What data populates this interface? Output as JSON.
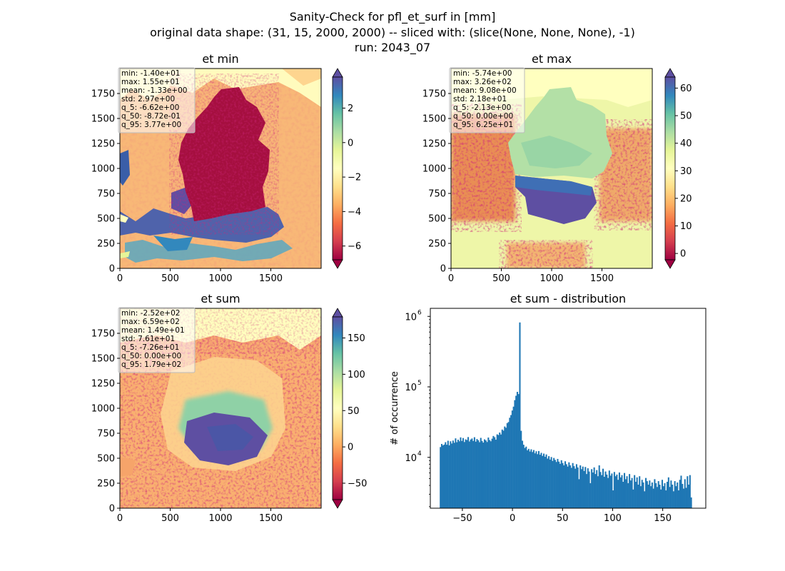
{
  "suptitle": {
    "line1": "Sanity-Check for pfl_et_surf in [mm]",
    "line2": "original data shape: (31, 15, 2000, 2000) -- sliced with: (slice(None, None, None), -1)",
    "line3": "run: 2043_07"
  },
  "colors": {
    "hist_bar": "#1f77b4",
    "spectral": [
      "#9e0142",
      "#d53e4f",
      "#f46d43",
      "#fdae61",
      "#fee08b",
      "#ffffbf",
      "#e6f598",
      "#abdda4",
      "#66c2a5",
      "#3288bd",
      "#5e4fa2"
    ]
  },
  "chart_data": [
    {
      "type": "heatmap",
      "title": "et min",
      "xticks": [
        0,
        500,
        1000,
        1500
      ],
      "yticks": [
        0,
        250,
        500,
        750,
        1000,
        1250,
        1500,
        1750
      ],
      "xlim": [
        0,
        2000
      ],
      "ylim": [
        0,
        2000
      ],
      "colormap": "Spectral",
      "colorbar": {
        "range": [
          -6.8,
          3.8
        ],
        "ticks": [
          2,
          0,
          -2,
          -4,
          -6
        ],
        "tick_labels": [
          "2",
          "0",
          "−2",
          "−4",
          "−6"
        ]
      },
      "stats": [
        "min: -1.40e+01",
        "max: 1.55e+01",
        "mean: -1.33e+00",
        "std: 2.97e+00",
        "q_5: -6.62e+00",
        "q_50: -8.72e-01",
        "q_95: 3.77e+00"
      ]
    },
    {
      "type": "heatmap",
      "title": "et max",
      "xticks": [
        0,
        500,
        1000,
        1500
      ],
      "yticks": [
        0,
        250,
        500,
        750,
        1000,
        1250,
        1500,
        1750
      ],
      "xlim": [
        0,
        2000
      ],
      "ylim": [
        0,
        2000
      ],
      "colormap": "Spectral",
      "colorbar": {
        "range": [
          -2.3,
          64
        ],
        "ticks": [
          60,
          50,
          40,
          30,
          20,
          10,
          0
        ],
        "tick_labels": [
          "60",
          "50",
          "40",
          "30",
          "20",
          "10",
          "0"
        ]
      },
      "stats": [
        "min: -5.74e+00",
        "max: 3.26e+02",
        "mean: 9.08e+00",
        "std: 2.18e+01",
        "q_5: -2.13e+00",
        "q_50: 0.00e+00",
        "q_95: 6.25e+01"
      ]
    },
    {
      "type": "heatmap",
      "title": "et sum",
      "xticks": [
        0,
        500,
        1000,
        1500
      ],
      "yticks": [
        0,
        250,
        500,
        750,
        1000,
        1250,
        1500,
        1750
      ],
      "xlim": [
        0,
        2000
      ],
      "ylim": [
        0,
        2000
      ],
      "colormap": "Spectral",
      "colorbar": {
        "range": [
          -72.6,
          179
        ],
        "ticks": [
          150,
          100,
          50,
          0,
          -50
        ],
        "tick_labels": [
          "150",
          "100",
          "50",
          "0",
          "−50"
        ]
      },
      "stats": [
        "min: -2.52e+02",
        "max: 6.59e+02",
        "mean: 1.49e+01",
        "std: 7.61e+01",
        "q_5: -7.26e+01",
        "q_50: 0.00e+00",
        "q_95: 1.79e+02"
      ]
    },
    {
      "type": "bar",
      "title": "et sum - distribution",
      "ylabel": "# of occurrence",
      "xlabel": "",
      "yscale": "log",
      "xlim": [
        -82,
        193
      ],
      "ylim": [
        1900,
        1300000
      ],
      "xticks": [
        -50,
        0,
        50,
        100,
        150
      ],
      "xtick_labels": [
        "−50",
        "0",
        "50",
        "100",
        "150"
      ],
      "yticks": [
        10000,
        100000,
        1000000
      ],
      "ytick_base": "10",
      "ytick_exponents": [
        "4",
        "5",
        "6"
      ],
      "bin_range": [
        -72.6,
        179
      ],
      "bin_count": 200,
      "counts": [
        14000,
        15500,
        14800,
        15200,
        16400,
        15100,
        17200,
        14800,
        16900,
        15700,
        17300,
        16100,
        18600,
        16400,
        17800,
        16900,
        19200,
        17100,
        18800,
        16500,
        18000,
        17600,
        19400,
        16800,
        17900,
        18500,
        17100,
        19300,
        16700,
        18200,
        17500,
        16400,
        18900,
        17100,
        16200,
        18000,
        17400,
        16500,
        19100,
        17600,
        16900,
        18400,
        20100,
        19300,
        17800,
        21200,
        20700,
        22500,
        21100,
        24800,
        23900,
        27400,
        26300,
        30600,
        31700,
        36500,
        39800,
        46200,
        52400,
        64800,
        74800,
        85000,
        79000,
        820000,
        23800,
        17200,
        15100,
        13600,
        14200,
        12600,
        13200,
        12100,
        13000,
        11900,
        12700,
        11400,
        12200,
        11100,
        12300,
        10900,
        11600,
        10500,
        11300,
        10200,
        11000,
        9600,
        10400,
        9300,
        10100,
        8900,
        9800,
        9200,
        8600,
        9500,
        8700,
        8100,
        9100,
        8300,
        7700,
        8800,
        8000,
        7400,
        8500,
        7700,
        7100,
        8300,
        7500,
        6900,
        8000,
        7200,
        4900,
        7700,
        6800,
        7400,
        6400,
        7300,
        5800,
        7000,
        6300,
        4300,
        6800,
        6100,
        7200,
        5800,
        6600,
        5400,
        7700,
        6200,
        5600,
        6900,
        5300,
        6300,
        5700,
        5100,
        6500,
        5500,
        5900,
        3400,
        6200,
        5400,
        5700,
        4800,
        6100,
        5200,
        5600,
        4500,
        6000,
        4900,
        5400,
        4300,
        5800,
        4700,
        5100,
        3500,
        5600,
        4500,
        5200,
        4100,
        5400,
        3900,
        4800,
        4400,
        3300,
        5100,
        4600,
        4100,
        4700,
        3900,
        4400,
        3600,
        4900,
        4300,
        3800,
        4600,
        4100,
        3500,
        4800,
        3900,
        4300,
        3400,
        4500,
        5200,
        3800,
        4700,
        4100,
        3300,
        4600,
        3900,
        4400,
        3400,
        4800,
        5500,
        4200,
        3600,
        4900,
        3700,
        5400,
        4100,
        5600,
        2700
      ]
    }
  ]
}
